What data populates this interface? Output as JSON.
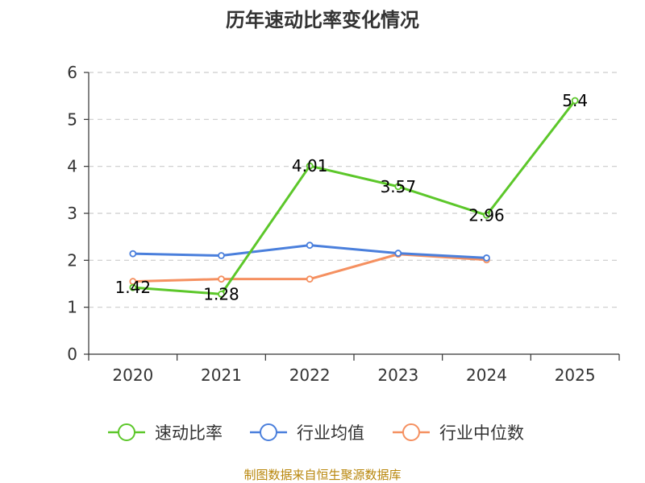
{
  "chart_data": {
    "type": "line",
    "title": "历年速动比率变化情况",
    "categories": [
      "2020",
      "2021",
      "2022",
      "2023",
      "2024",
      "2025"
    ],
    "ylim": [
      0,
      6
    ],
    "yticks": [
      0,
      1,
      2,
      3,
      4,
      5,
      6
    ],
    "grid": true,
    "legend_position": "bottom",
    "series": [
      {
        "name": "速动比率",
        "color": "#5cc72a",
        "values": [
          1.42,
          1.28,
          4.01,
          3.57,
          2.96,
          5.4
        ],
        "labels": [
          "1.42",
          "1.28",
          "4.01",
          "3.57",
          "2.96",
          "5.4"
        ],
        "show_labels": true
      },
      {
        "name": "行业均值",
        "color": "#4a7fdc",
        "values": [
          2.14,
          2.1,
          2.32,
          2.15,
          2.05,
          null
        ],
        "show_labels": false
      },
      {
        "name": "行业中位数",
        "color": "#f59060",
        "values": [
          1.55,
          1.6,
          1.6,
          2.13,
          2.01,
          null
        ],
        "show_labels": false
      }
    ]
  },
  "footer": {
    "source": "制图数据来自恒生聚源数据库"
  }
}
